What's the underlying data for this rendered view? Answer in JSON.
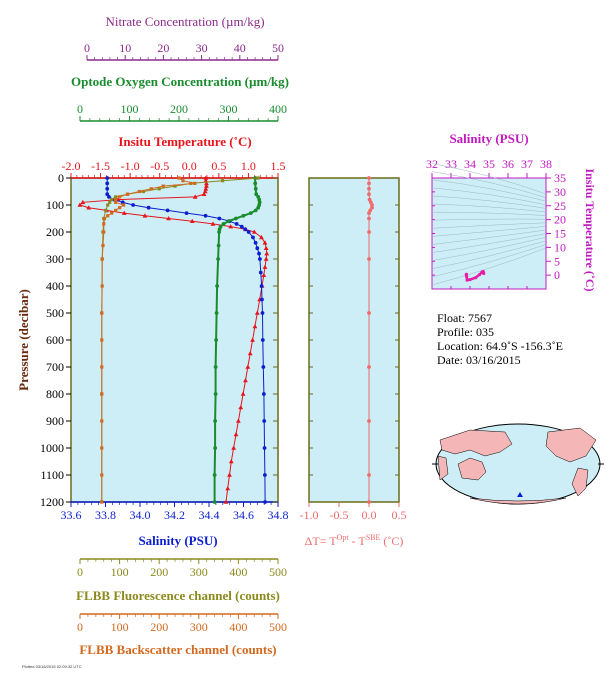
{
  "colors": {
    "panel_bg": "#cdeef6",
    "nitrate": "#8b2a8b",
    "oxygen": "#1a8c2e",
    "temperature": "#e8141b",
    "salinity": "#0c1fd0",
    "fluorescence": "#8b8a1d",
    "backscatter": "#d2691e",
    "delta_t": "#f06b6b",
    "ts_axis": "#c21ac2",
    "frame_olive": "#6b6b1a"
  },
  "axes": {
    "nitrate": {
      "label": "Nitrate Concentration (µm/kg)",
      "range": [
        0,
        50
      ],
      "ticks": [
        "0",
        "10",
        "20",
        "30",
        "40",
        "50"
      ]
    },
    "oxygen": {
      "label": "Optode Oxygen Concentration (µm/kg)",
      "range": [
        0,
        400
      ],
      "ticks": [
        "0",
        "100",
        "200",
        "300",
        "400"
      ]
    },
    "temperature": {
      "label": "Insitu Temperature (˚C)",
      "range": [
        -2.0,
        1.5
      ],
      "ticks": [
        "-2.0",
        "-1.5",
        "-1.0",
        "-0.5",
        "0.0",
        "0.5",
        "1.0",
        "1.5"
      ]
    },
    "pressure": {
      "label": "Pressure (decibar)",
      "range": [
        0,
        1200
      ],
      "ticks": [
        "0",
        "100",
        "200",
        "300",
        "400",
        "500",
        "600",
        "700",
        "800",
        "900",
        "1000",
        "1100",
        "1200"
      ]
    },
    "salinity": {
      "label": "Salinity (PSU)",
      "range": [
        33.6,
        34.8
      ],
      "ticks": [
        "33.6",
        "33.8",
        "34.0",
        "34.2",
        "34.4",
        "34.6",
        "34.8"
      ]
    },
    "fluorescence": {
      "label": "FLBB Fluorescence channel (counts)",
      "range": [
        0,
        500
      ],
      "ticks": [
        "0",
        "100",
        "200",
        "300",
        "400",
        "500"
      ]
    },
    "backscatter": {
      "label": "FLBB Backscatter channel (counts)",
      "range": [
        0,
        500
      ],
      "ticks": [
        "0",
        "100",
        "200",
        "300",
        "400",
        "500"
      ]
    },
    "delta_t": {
      "label_prefix": "ΔT= T",
      "label_sup1": "Opt",
      "label_mid": " - T",
      "label_sup2": "SBE",
      "label_suffix": " (˚C)",
      "range": [
        -1.0,
        0.5
      ],
      "ticks": [
        "-1.0",
        "-0.5",
        "0.0",
        "0.5"
      ]
    },
    "ts_salinity": {
      "label": "Salinity (PSU)",
      "range": [
        32,
        38
      ],
      "ticks": [
        "32",
        "33",
        "34",
        "35",
        "36",
        "37",
        "38"
      ]
    },
    "ts_temperature": {
      "label": "Insitu Temperature (˚C)",
      "range": [
        -5,
        35
      ],
      "ticks": [
        "0",
        "5",
        "10",
        "15",
        "20",
        "25",
        "30",
        "35"
      ]
    }
  },
  "info": {
    "float": "Float:  7567",
    "profile": "Profile:  035",
    "location": "Location:  64.9˚S  -156.3˚E",
    "date": "Date:  03/16/2015"
  },
  "footer": {
    "tiny_text": "Plotted 03/16/2015  02:09:32 UTC"
  },
  "chart_data": {
    "type": "line",
    "y_axis": "pressure",
    "y_reversed": true,
    "grid": false,
    "series": [
      {
        "key": "temperature",
        "points": [
          [
            0,
            0.28
          ],
          [
            10,
            0.28
          ],
          [
            20,
            0.29
          ],
          [
            30,
            0.29
          ],
          [
            40,
            0.28
          ],
          [
            50,
            0.27
          ],
          [
            60,
            0.25
          ],
          [
            70,
            0.1
          ],
          [
            80,
            -1.2
          ],
          [
            90,
            -1.8
          ],
          [
            100,
            -1.85
          ],
          [
            110,
            -1.7
          ],
          [
            120,
            -1.4
          ],
          [
            130,
            -1.1
          ],
          [
            140,
            -0.75
          ],
          [
            150,
            -0.35
          ],
          [
            160,
            0.05
          ],
          [
            170,
            0.4
          ],
          [
            180,
            0.7
          ],
          [
            190,
            0.95
          ],
          [
            200,
            1.1
          ],
          [
            220,
            1.22
          ],
          [
            240,
            1.28
          ],
          [
            260,
            1.3
          ],
          [
            280,
            1.31
          ],
          [
            300,
            1.3
          ],
          [
            330,
            1.28
          ],
          [
            360,
            1.26
          ],
          [
            400,
            1.23
          ],
          [
            450,
            1.19
          ],
          [
            500,
            1.15
          ],
          [
            550,
            1.11
          ],
          [
            600,
            1.07
          ],
          [
            650,
            1.03
          ],
          [
            700,
            0.99
          ],
          [
            750,
            0.95
          ],
          [
            800,
            0.91
          ],
          [
            850,
            0.87
          ],
          [
            900,
            0.83
          ],
          [
            950,
            0.79
          ],
          [
            1000,
            0.75
          ],
          [
            1050,
            0.71
          ],
          [
            1100,
            0.68
          ],
          [
            1150,
            0.65
          ],
          [
            1200,
            0.62
          ]
        ]
      },
      {
        "key": "salinity",
        "points": [
          [
            0,
            33.81
          ],
          [
            20,
            33.81
          ],
          [
            40,
            33.81
          ],
          [
            60,
            33.81
          ],
          [
            70,
            33.82
          ],
          [
            80,
            33.85
          ],
          [
            90,
            33.9
          ],
          [
            100,
            33.96
          ],
          [
            110,
            34.05
          ],
          [
            120,
            34.16
          ],
          [
            130,
            34.27
          ],
          [
            140,
            34.38
          ],
          [
            150,
            34.46
          ],
          [
            160,
            34.52
          ],
          [
            170,
            34.56
          ],
          [
            180,
            34.59
          ],
          [
            190,
            34.61
          ],
          [
            200,
            34.63
          ],
          [
            220,
            34.655
          ],
          [
            240,
            34.67
          ],
          [
            260,
            34.68
          ],
          [
            280,
            34.69
          ],
          [
            300,
            34.695
          ],
          [
            350,
            34.7
          ],
          [
            400,
            34.705
          ],
          [
            450,
            34.707
          ],
          [
            500,
            34.71
          ],
          [
            600,
            34.712
          ],
          [
            700,
            34.715
          ],
          [
            800,
            34.718
          ],
          [
            900,
            34.72
          ],
          [
            1000,
            34.722
          ],
          [
            1100,
            34.724
          ],
          [
            1200,
            34.725
          ]
        ]
      },
      {
        "key": "oxygen",
        "points": [
          [
            0,
            354
          ],
          [
            20,
            354
          ],
          [
            40,
            355
          ],
          [
            60,
            356
          ],
          [
            70,
            360
          ],
          [
            80,
            362
          ],
          [
            90,
            363
          ],
          [
            100,
            362
          ],
          [
            110,
            360
          ],
          [
            120,
            355
          ],
          [
            130,
            345
          ],
          [
            140,
            330
          ],
          [
            150,
            315
          ],
          [
            160,
            300
          ],
          [
            170,
            290
          ],
          [
            180,
            284
          ],
          [
            190,
            282
          ],
          [
            200,
            281
          ],
          [
            250,
            280
          ],
          [
            300,
            279
          ],
          [
            400,
            277
          ],
          [
            500,
            276
          ],
          [
            600,
            275
          ],
          [
            700,
            274
          ],
          [
            800,
            274
          ],
          [
            900,
            273
          ],
          [
            1000,
            273
          ],
          [
            1100,
            272
          ],
          [
            1200,
            272
          ]
        ]
      },
      {
        "key": "nitrate",
        "points": []
      },
      {
        "key": "fluorescence",
        "points": [
          [
            0,
            450
          ],
          [
            10,
            360
          ],
          [
            20,
            280
          ],
          [
            30,
            240
          ],
          [
            40,
            200
          ],
          [
            50,
            160
          ],
          [
            60,
            120
          ],
          [
            70,
            90
          ],
          [
            80,
            80
          ],
          [
            90,
            75
          ],
          [
            100,
            70
          ],
          [
            120,
            65
          ],
          [
            150,
            60
          ],
          [
            200,
            58
          ],
          [
            300,
            56
          ],
          [
            500,
            55
          ],
          [
            800,
            55
          ],
          [
            1200,
            55
          ]
        ]
      },
      {
        "key": "backscatter",
        "points": [
          [
            0,
            250
          ],
          [
            10,
            260
          ],
          [
            20,
            290
          ],
          [
            30,
            210
          ],
          [
            40,
            180
          ],
          [
            50,
            150
          ],
          [
            60,
            120
          ],
          [
            70,
            100
          ],
          [
            80,
            90
          ],
          [
            90,
            90
          ],
          [
            100,
            110
          ],
          [
            110,
            100
          ],
          [
            120,
            90
          ],
          [
            130,
            80
          ],
          [
            140,
            70
          ],
          [
            150,
            62
          ],
          [
            170,
            60
          ],
          [
            200,
            60
          ],
          [
            250,
            58
          ],
          [
            300,
            56
          ],
          [
            400,
            56
          ],
          [
            500,
            55
          ],
          [
            600,
            55
          ],
          [
            700,
            55
          ],
          [
            800,
            55
          ],
          [
            900,
            55
          ],
          [
            1000,
            55
          ],
          [
            1100,
            55
          ],
          [
            1200,
            55
          ]
        ]
      },
      {
        "key": "delta_t",
        "points": [
          [
            0,
            0.0
          ],
          [
            20,
            0.0
          ],
          [
            40,
            0.0
          ],
          [
            60,
            0.0
          ],
          [
            80,
            0.01
          ],
          [
            90,
            0.03
          ],
          [
            100,
            0.05
          ],
          [
            110,
            0.05
          ],
          [
            120,
            0.02
          ],
          [
            130,
            0.0
          ],
          [
            150,
            0.0
          ],
          [
            200,
            0.0
          ],
          [
            300,
            0.0
          ],
          [
            500,
            0.0
          ],
          [
            700,
            0.0
          ],
          [
            900,
            0.0
          ],
          [
            1100,
            0.0
          ],
          [
            1200,
            0.0
          ]
        ]
      }
    ],
    "ts_points": [
      [
        34.72,
        0.6
      ],
      [
        34.71,
        0.9
      ],
      [
        34.7,
        1.1
      ],
      [
        34.69,
        1.3
      ],
      [
        34.66,
        1.2
      ],
      [
        34.62,
        1.0
      ],
      [
        34.5,
        0.2
      ],
      [
        34.3,
        -0.9
      ],
      [
        34.0,
        -1.6
      ],
      [
        33.85,
        -1.8
      ],
      [
        33.82,
        -0.5
      ],
      [
        33.81,
        0.2
      ],
      [
        33.81,
        0.28
      ]
    ]
  }
}
